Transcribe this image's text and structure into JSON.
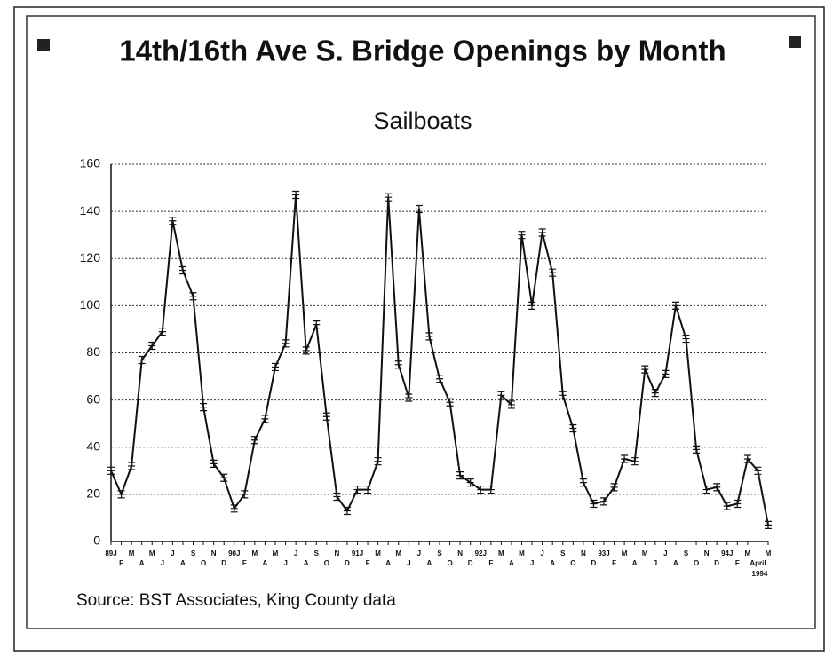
{
  "chart_data": {
    "type": "line",
    "title": "14th/16th Ave S. Bridge Openings by Month",
    "subtitle": "Sailboats",
    "source": "Source:  BST Associates, King County data",
    "annotation": "1994",
    "categories": [
      "89J",
      "F",
      "M",
      "A",
      "M",
      "J",
      "J",
      "A",
      "S",
      "O",
      "N",
      "D",
      "90J",
      "F",
      "M",
      "A",
      "M",
      "J",
      "J",
      "A",
      "S",
      "O",
      "N",
      "D",
      "91J",
      "F",
      "M",
      "A",
      "M",
      "J",
      "J",
      "A",
      "S",
      "O",
      "N",
      "D",
      "92J",
      "F",
      "M",
      "A",
      "M",
      "J",
      "J",
      "A",
      "S",
      "O",
      "N",
      "D",
      "93J",
      "F",
      "M",
      "A",
      "M",
      "J",
      "J",
      "A",
      "S",
      "O",
      "N",
      "D",
      "94J",
      "F",
      "M",
      "April",
      "M"
    ],
    "series": [
      {
        "name": "Sailboats",
        "color": "#111111",
        "values": [
          30,
          20,
          32,
          77,
          83,
          89,
          136,
          115,
          104,
          57,
          33,
          27,
          14,
          20,
          43,
          52,
          74,
          84,
          147,
          81,
          92,
          53,
          19,
          13,
          22,
          22,
          34,
          146,
          75,
          61,
          141,
          87,
          69,
          59,
          28,
          25,
          22,
          22,
          62,
          58,
          130,
          100,
          131,
          114,
          62,
          48,
          25,
          16,
          17,
          23,
          35,
          34,
          73,
          63,
          71,
          100,
          86,
          39,
          22,
          23,
          15,
          16,
          35,
          30,
          7
        ]
      }
    ],
    "ylim": [
      0,
      160
    ],
    "yticks": [
      0,
      20,
      40,
      60,
      80,
      100,
      120,
      140,
      160
    ],
    "grid": true
  }
}
